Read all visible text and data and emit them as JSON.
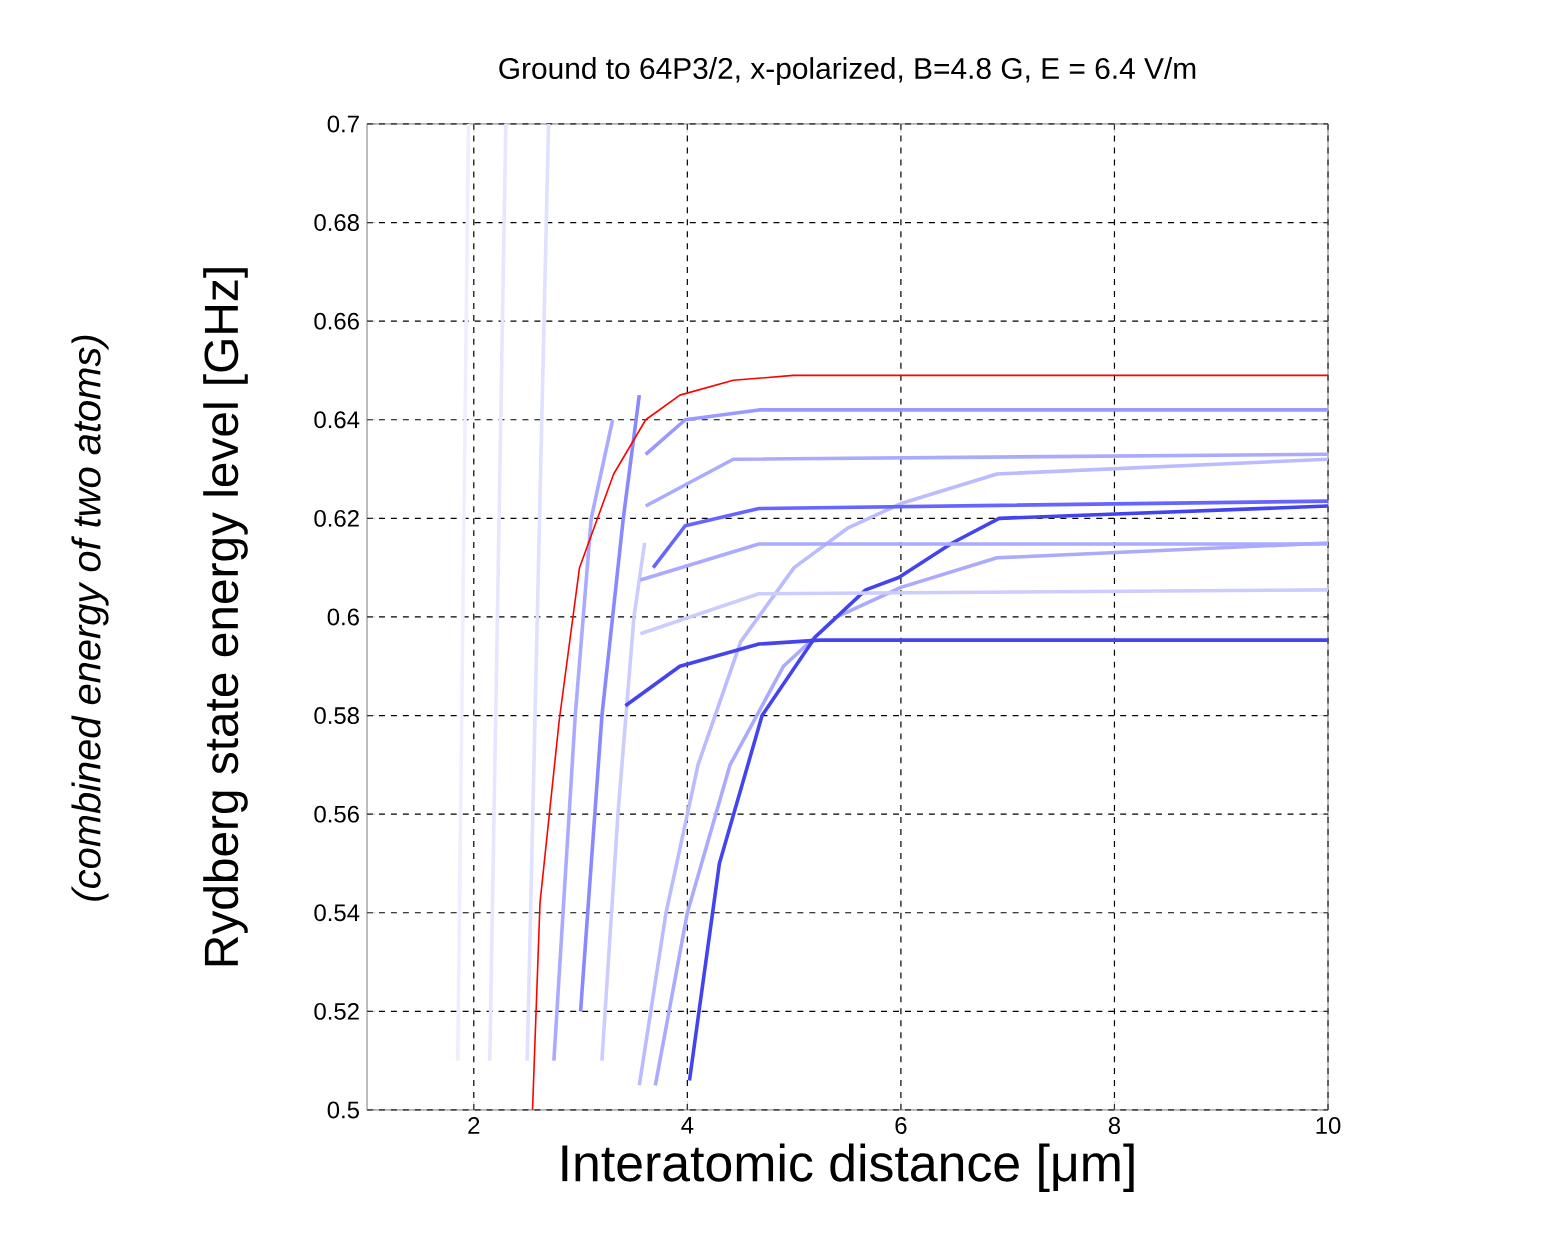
{
  "chart_data": {
    "type": "line",
    "title": "Ground to 64P3/2, x-polarized, B=4.8 G, E = 6.4 V/m",
    "xlabel": "Interatomic distance [μm]",
    "ylabel": "Rydberg state energy level [GHz]",
    "annotations": [
      "*(combined energy of two atoms)*"
    ],
    "xlim": [
      1,
      10
    ],
    "xticks": [
      2,
      4,
      6,
      8,
      10
    ],
    "ylim": [
      0.5,
      0.7
    ],
    "yticks": [
      0.5,
      0.52,
      0.54,
      0.56,
      0.58,
      0.6,
      0.62,
      0.64,
      0.66,
      0.68,
      0.7
    ],
    "grid": true,
    "series": [
      {
        "color": "#eeeeff",
        "x": [
          1.85,
          1.95
        ],
        "values": [
          0.51,
          0.7
        ]
      },
      {
        "color": "#e6e6ff",
        "x": [
          2.15,
          2.3
        ],
        "values": [
          0.51,
          0.7
        ]
      },
      {
        "color": "#e0e0ff",
        "x": [
          2.5,
          2.7
        ],
        "values": [
          0.51,
          0.7
        ]
      },
      {
        "color": "#aaaaff",
        "x": [
          2.75,
          2.95,
          3.1,
          3.3
        ],
        "values": [
          0.51,
          0.58,
          0.62,
          0.64
        ]
      },
      {
        "color": "#8888ff",
        "x": [
          3.0,
          3.2,
          3.4,
          3.55
        ],
        "values": [
          0.52,
          0.58,
          0.62,
          0.645
        ]
      },
      {
        "color": "#ccccff",
        "x": [
          3.2,
          3.35,
          3.5,
          3.6
        ],
        "values": [
          0.51,
          0.56,
          0.6,
          0.615
        ]
      },
      {
        "color": "#9999ff",
        "x": [
          3.61,
          3.98,
          4.67,
          10
        ],
        "values": [
          0.633,
          0.64,
          0.642,
          0.642
        ]
      },
      {
        "color": "#aaaaff",
        "x": [
          3.61,
          4.43,
          10
        ],
        "values": [
          0.6225,
          0.632,
          0.633
        ]
      },
      {
        "color": "#bbbbff",
        "x": [
          3.55,
          3.8,
          4.1,
          4.5,
          5.0,
          5.5,
          6.0,
          6.9,
          10
        ],
        "values": [
          0.505,
          0.54,
          0.57,
          0.595,
          0.61,
          0.618,
          0.623,
          0.629,
          0.632
        ]
      },
      {
        "color": "#aaaaff",
        "x": [
          3.7,
          4.0,
          4.4,
          4.9,
          5.4,
          6.0,
          6.9,
          10
        ],
        "values": [
          0.505,
          0.54,
          0.57,
          0.59,
          0.6,
          0.606,
          0.612,
          0.615
        ]
      },
      {
        "color": "#4444ee",
        "x": [
          4.02,
          4.3,
          4.7,
          5.2,
          5.67,
          5.98,
          6.48,
          6.92,
          10
        ],
        "values": [
          0.506,
          0.55,
          0.58,
          0.596,
          0.6055,
          0.608,
          0.615,
          0.62,
          0.6225
        ]
      },
      {
        "color": "#6666ff",
        "x": [
          3.68,
          3.98,
          4.67,
          10
        ],
        "values": [
          0.61,
          0.6185,
          0.622,
          0.6235
        ]
      },
      {
        "color": "#aaaaff",
        "x": [
          3.56,
          4.67,
          10
        ],
        "values": [
          0.6075,
          0.6148,
          0.6148
        ]
      },
      {
        "color": "#ccccff",
        "x": [
          3.56,
          4.67,
          10
        ],
        "values": [
          0.5966,
          0.6047,
          0.6055
        ]
      },
      {
        "color": "#4444ee",
        "x": [
          3.42,
          3.93,
          4.67,
          5.24,
          10
        ],
        "values": [
          0.582,
          0.59,
          0.5945,
          0.5953,
          0.5953
        ]
      },
      {
        "color": "#ff0000",
        "x": [
          2.55,
          2.62,
          2.8,
          2.99,
          3.31,
          3.61,
          3.93,
          4.43,
          4.99,
          10
        ],
        "values": [
          0.5,
          0.542,
          0.579,
          0.61,
          0.629,
          0.64,
          0.645,
          0.648,
          0.649,
          0.649
        ]
      }
    ]
  }
}
